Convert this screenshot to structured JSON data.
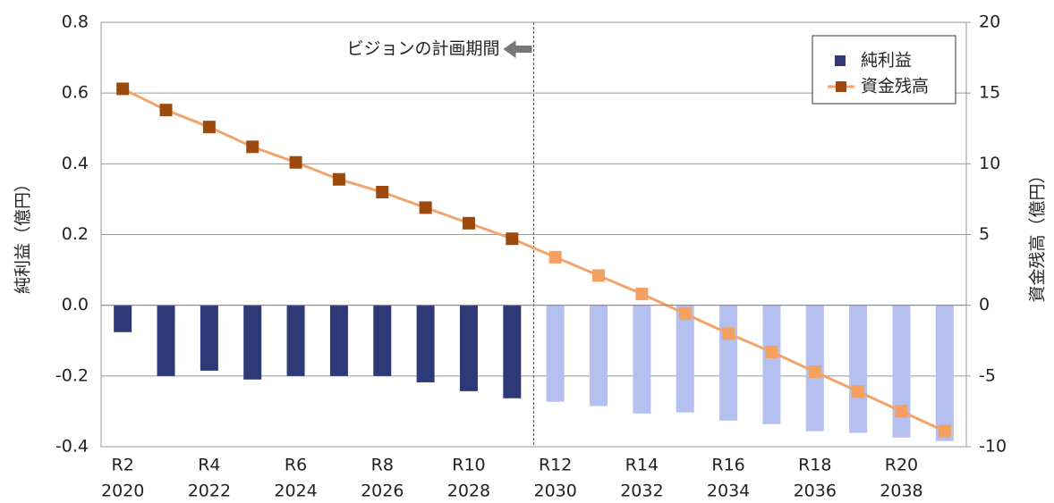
{
  "chart_data": {
    "type": "bar_line",
    "annotation": "ビジョンの計画期間",
    "ylabel": "純利益（億円）",
    "y2label": "資金残高（億円）",
    "categories": [
      "R2",
      null,
      "R4",
      null,
      "R6",
      null,
      "R8",
      null,
      "R10",
      null,
      "R12",
      null,
      "R14",
      null,
      "R16",
      null,
      "R18",
      null,
      "R20",
      null
    ],
    "category_years": [
      "2020",
      null,
      "2022",
      null,
      "2024",
      null,
      "2026",
      null,
      "2028",
      null,
      "2030",
      null,
      "2032",
      null,
      "2034",
      null,
      "2036",
      null,
      "2038",
      null
    ],
    "series": [
      {
        "name": "純利益",
        "type": "bar",
        "axis": "y",
        "color": "#2e3a78",
        "colors": [
          "#2e3a78",
          "#2e3a78",
          "#2e3a78",
          "#2e3a78",
          "#2e3a78",
          "#2e3a78",
          "#2e3a78",
          "#2e3a78",
          "#2e3a78",
          "#2e3a78",
          "#b4c0f0",
          "#b4c0f0",
          "#b4c0f0",
          "#b4c0f0",
          "#b4c0f0",
          "#b4c0f0",
          "#b4c0f0",
          "#b4c0f0",
          "#b4c0f0",
          "#b4c0f0"
        ],
        "values": [
          -0.076,
          -0.2,
          -0.185,
          -0.21,
          -0.2,
          -0.2,
          -0.2,
          -0.218,
          -0.243,
          -0.263,
          -0.273,
          -0.285,
          -0.306,
          -0.303,
          -0.326,
          -0.336,
          -0.356,
          -0.361,
          -0.374,
          -0.384
        ]
      },
      {
        "name": "資金残高",
        "type": "line",
        "axis": "y2",
        "color": "#f2a46a",
        "marker_color": "#9c4a0e",
        "marker_colors": [
          "#9c4a0e",
          "#9c4a0e",
          "#9c4a0e",
          "#9c4a0e",
          "#9c4a0e",
          "#9c4a0e",
          "#9c4a0e",
          "#9c4a0e",
          "#9c4a0e",
          "#9c4a0e",
          "#f4a060",
          "#f4a060",
          "#f4a060",
          "#f4a060",
          "#f4a060",
          "#f4a060",
          "#f4a060",
          "#f4a060",
          "#f4a060",
          "#f4a060"
        ],
        "values": [
          15.3,
          13.8,
          12.6,
          11.2,
          10.1,
          8.9,
          8.0,
          6.9,
          5.8,
          4.7,
          3.4,
          2.1,
          0.8,
          -0.6,
          -2.0,
          -3.3,
          -4.7,
          -6.1,
          -7.5,
          -8.9
        ]
      }
    ],
    "ylim": [
      -0.4,
      0.8
    ],
    "yticks": [
      -0.4,
      -0.2,
      {
        "value": 0,
        "label": "0.0"
      },
      0.2,
      0.4,
      0.6,
      0.8
    ],
    "y2lim": [
      -10,
      20
    ],
    "y2ticks": [
      -10,
      -5,
      0,
      5,
      10,
      15,
      20
    ],
    "negative_tick_color": "#e00000",
    "grid": true,
    "legend": "upper right"
  }
}
